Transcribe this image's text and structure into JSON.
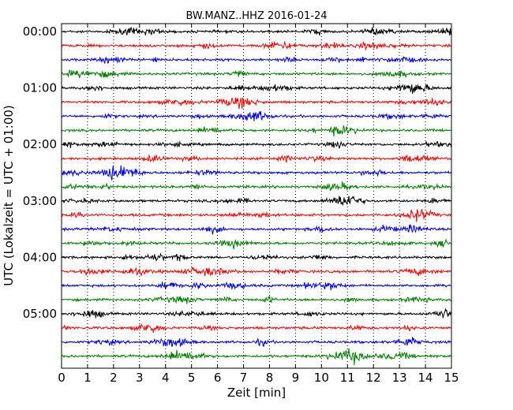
{
  "chart_data": {
    "type": "line",
    "title": "BW.MANZ..HHZ 2016-01-24",
    "xlabel": "Zeit  [min]",
    "ylabel": "UTC (Lokalzeit = UTC + 01:00)",
    "xlim": [
      0,
      15
    ],
    "x_ticks": [
      "0",
      "1",
      "2",
      "3",
      "4",
      "5",
      "6",
      "7",
      "8",
      "9",
      "10",
      "11",
      "12",
      "13",
      "14",
      "15"
    ],
    "vertical_grid": "dotted at every minute",
    "trace_interval_minutes": 15,
    "trace_count": 24,
    "trace_colors": [
      "#000000",
      "#ff0000",
      "#0000ff",
      "#008000"
    ],
    "y_ticks": [
      {
        "label": "00:00",
        "trace_index": 0
      },
      {
        "label": "01:00",
        "trace_index": 4
      },
      {
        "label": "02:00",
        "trace_index": 8
      },
      {
        "label": "03:00",
        "trace_index": 12
      },
      {
        "label": "04:00",
        "trace_index": 16
      },
      {
        "label": "05:00",
        "trace_index": 20
      }
    ],
    "series": [
      {
        "start_utc": "00:00",
        "color": "#000000"
      },
      {
        "start_utc": "00:15",
        "color": "#ff0000"
      },
      {
        "start_utc": "00:30",
        "color": "#0000ff"
      },
      {
        "start_utc": "00:45",
        "color": "#008000"
      },
      {
        "start_utc": "01:00",
        "color": "#000000"
      },
      {
        "start_utc": "01:15",
        "color": "#ff0000"
      },
      {
        "start_utc": "01:30",
        "color": "#0000ff"
      },
      {
        "start_utc": "01:45",
        "color": "#008000"
      },
      {
        "start_utc": "02:00",
        "color": "#000000"
      },
      {
        "start_utc": "02:15",
        "color": "#ff0000"
      },
      {
        "start_utc": "02:30",
        "color": "#0000ff"
      },
      {
        "start_utc": "02:45",
        "color": "#008000"
      },
      {
        "start_utc": "03:00",
        "color": "#000000"
      },
      {
        "start_utc": "03:15",
        "color": "#ff0000"
      },
      {
        "start_utc": "03:30",
        "color": "#0000ff"
      },
      {
        "start_utc": "03:45",
        "color": "#008000"
      },
      {
        "start_utc": "04:00",
        "color": "#000000"
      },
      {
        "start_utc": "04:15",
        "color": "#ff0000"
      },
      {
        "start_utc": "04:30",
        "color": "#0000ff"
      },
      {
        "start_utc": "04:45",
        "color": "#008000"
      },
      {
        "start_utc": "05:00",
        "color": "#000000"
      },
      {
        "start_utc": "05:15",
        "color": "#ff0000"
      },
      {
        "start_utc": "05:30",
        "color": "#0000ff"
      },
      {
        "start_utc": "05:45",
        "color": "#008000"
      }
    ]
  }
}
